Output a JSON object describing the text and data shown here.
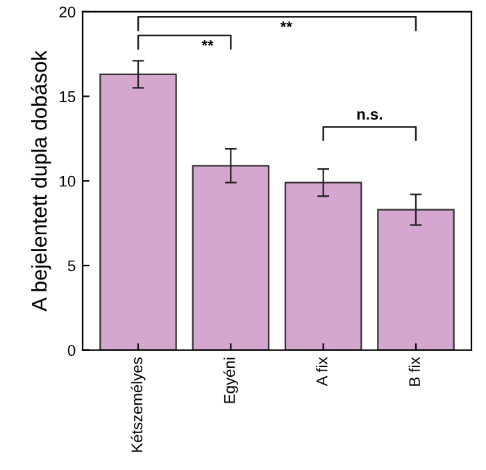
{
  "chart_data": {
    "type": "bar",
    "ylabel": "A bejelentett dupla dobások",
    "categories": [
      "Kétszemélyes",
      "Egyéni",
      "A fix",
      "B fix"
    ],
    "values": [
      16.3,
      10.9,
      9.9,
      8.3
    ],
    "errors": [
      0.8,
      1.0,
      0.8,
      0.9
    ],
    "color": "#d4a6d0",
    "ylim": [
      0,
      20
    ],
    "yticks": [
      0,
      5,
      10,
      15,
      20
    ],
    "annotations": [
      "**",
      "**",
      "n.s."
    ]
  }
}
